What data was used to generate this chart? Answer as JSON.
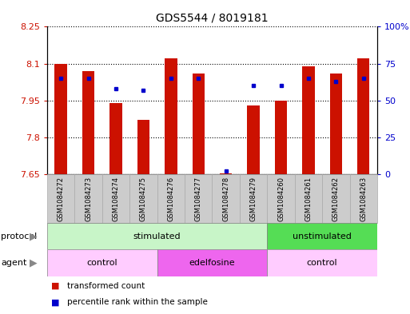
{
  "title": "GDS5544 / 8019181",
  "samples": [
    "GSM1084272",
    "GSM1084273",
    "GSM1084274",
    "GSM1084275",
    "GSM1084276",
    "GSM1084277",
    "GSM1084278",
    "GSM1084279",
    "GSM1084260",
    "GSM1084261",
    "GSM1084262",
    "GSM1084263"
  ],
  "red_values": [
    8.1,
    8.07,
    7.94,
    7.87,
    8.12,
    8.06,
    7.655,
    7.93,
    7.95,
    8.09,
    8.06,
    8.12
  ],
  "blue_values": [
    65,
    65,
    58,
    57,
    65,
    65,
    2,
    60,
    60,
    65,
    63,
    65
  ],
  "y_min": 7.65,
  "y_max": 8.25,
  "y_ticks": [
    7.65,
    7.8,
    7.95,
    8.1,
    8.25
  ],
  "y_tick_labels": [
    "7.65",
    "7.8",
    "7.95",
    "8.1",
    "8.25"
  ],
  "right_y_ticks": [
    0,
    25,
    50,
    75,
    100
  ],
  "right_y_labels": [
    "0",
    "25",
    "50",
    "75",
    "100%"
  ],
  "protocol_groups": [
    {
      "label": "stimulated",
      "start": 0,
      "end": 8,
      "color": "#C8F5C8"
    },
    {
      "label": "unstimulated",
      "start": 8,
      "end": 12,
      "color": "#55DD55"
    }
  ],
  "agent_groups": [
    {
      "label": "control",
      "start": 0,
      "end": 4,
      "color": "#FFCCFF"
    },
    {
      "label": "edelfosine",
      "start": 4,
      "end": 8,
      "color": "#EE66EE"
    },
    {
      "label": "control",
      "start": 8,
      "end": 12,
      "color": "#FFCCFF"
    }
  ],
  "bar_color": "#CC1100",
  "dot_color": "#0000CC",
  "tick_label_color_left": "#CC1100",
  "tick_label_color_right": "#0000CC",
  "bar_width": 0.45,
  "sample_bg_color": "#CCCCCC",
  "sample_border_color": "#AAAAAA",
  "legend_items": [
    {
      "label": "transformed count",
      "color": "#CC1100"
    },
    {
      "label": "percentile rank within the sample",
      "color": "#0000CC"
    }
  ]
}
